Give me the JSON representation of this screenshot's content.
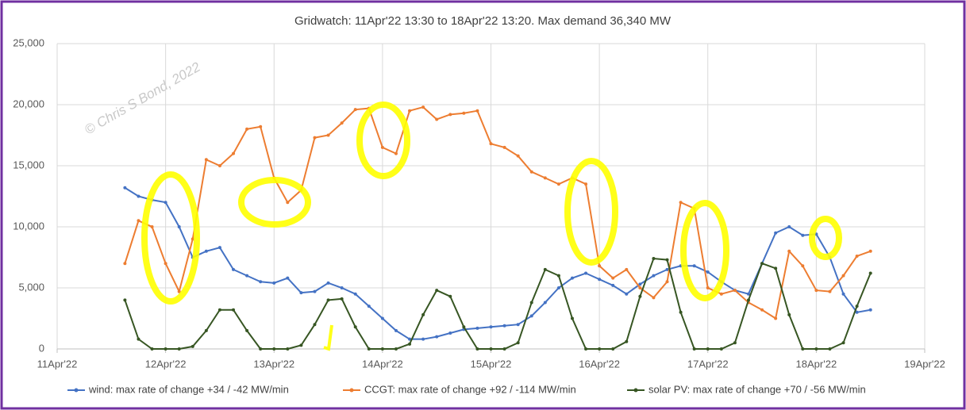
{
  "chart_data": {
    "type": "line",
    "title": "Gridwatch:  11Apr'22 13:30  to 18Apr'22 13:20.   Max demand 36,340 MW",
    "annotation": "© Chris S Bond, 2022",
    "legend": "bottom",
    "grid": true,
    "xlim": [
      0,
      8
    ],
    "xticks": [
      {
        "value": 0,
        "label": "11Apr'22"
      },
      {
        "value": 1,
        "label": "12Apr'22"
      },
      {
        "value": 2,
        "label": "13Apr'22"
      },
      {
        "value": 3,
        "label": "14Apr'22"
      },
      {
        "value": 4,
        "label": "15Apr'22"
      },
      {
        "value": 5,
        "label": "16Apr'22"
      },
      {
        "value": 6,
        "label": "17Apr'22"
      },
      {
        "value": 7,
        "label": "18Apr'22"
      },
      {
        "value": 8,
        "label": "19Apr'22"
      }
    ],
    "ylim": [
      0,
      25000
    ],
    "yticks": [
      0,
      {
        "value": 5000,
        "label": "5,000"
      },
      {
        "value": 10000,
        "label": "10,000"
      },
      {
        "value": 15000,
        "label": "15,000"
      },
      {
        "value": 20000,
        "label": "20,000"
      },
      {
        "value": 25000,
        "label": "25,000"
      }
    ],
    "x": [
      0.625,
      0.75,
      0.875,
      1,
      1.125,
      1.25,
      1.375,
      1.5,
      1.625,
      1.75,
      1.875,
      2,
      2.125,
      2.25,
      2.375,
      2.5,
      2.625,
      2.75,
      2.875,
      3,
      3.125,
      3.25,
      3.375,
      3.5,
      3.625,
      3.75,
      3.875,
      4,
      4.125,
      4.25,
      4.375,
      4.5,
      4.625,
      4.75,
      4.875,
      5,
      5.125,
      5.25,
      5.375,
      5.5,
      5.625,
      5.75,
      5.875,
      6,
      6.125,
      6.25,
      6.375,
      6.5,
      6.625,
      6.75,
      6.875,
      7,
      7.125,
      7.25,
      7.375,
      7.5
    ],
    "series": [
      {
        "name": "wind: max rate of change +34 / -42 MW/min",
        "color": "#4472c4",
        "values": [
          13200,
          12500,
          12200,
          12000,
          10000,
          7500,
          8000,
          8300,
          6500,
          6000,
          5500,
          5400,
          5800,
          4600,
          4700,
          5400,
          5000,
          4500,
          3500,
          2500,
          1500,
          800,
          800,
          1000,
          1300,
          1600,
          1700,
          1800,
          1900,
          2000,
          2700,
          3800,
          5000,
          5800,
          6200,
          5700,
          5200,
          4500,
          5300,
          6000,
          6500,
          6800,
          6800,
          6300,
          5500,
          4800,
          4500,
          7000,
          9500,
          10000,
          9300,
          9400,
          7500,
          4500,
          3000,
          3200
        ]
      },
      {
        "name": "CCGT: max rate of change +92 / -114 MW/min",
        "color": "#ed7d31",
        "values": [
          7000,
          10500,
          10000,
          7000,
          4700,
          9000,
          15500,
          15000,
          16000,
          18000,
          18200,
          14000,
          12000,
          13000,
          17300,
          17500,
          18500,
          19600,
          19700,
          16500,
          16000,
          19500,
          19800,
          18800,
          19200,
          19300,
          19500,
          16800,
          16500,
          15800,
          14500,
          14000,
          13500,
          14000,
          13500,
          6800,
          5800,
          6500,
          5000,
          4200,
          5500,
          12000,
          11500,
          5000,
          4500,
          4800,
          3800,
          3200,
          2500,
          8000,
          6800,
          4800,
          4700,
          6000,
          7600,
          8000
        ]
      },
      {
        "name": "solar PV: max rate of change +70 / -56 MW/min",
        "color": "#375623",
        "values": [
          4000,
          800,
          0,
          0,
          0,
          200,
          1500,
          3200,
          3200,
          1500,
          0,
          0,
          0,
          300,
          2000,
          4000,
          4100,
          1800,
          0,
          0,
          0,
          400,
          2800,
          4800,
          4300,
          1800,
          0,
          0,
          0,
          500,
          3800,
          6500,
          6000,
          2500,
          0,
          0,
          0,
          600,
          4300,
          7400,
          7300,
          3000,
          0,
          0,
          0,
          500,
          4000,
          7000,
          6600,
          2800,
          0,
          0,
          0,
          500,
          3500,
          6200
        ]
      }
    ]
  }
}
